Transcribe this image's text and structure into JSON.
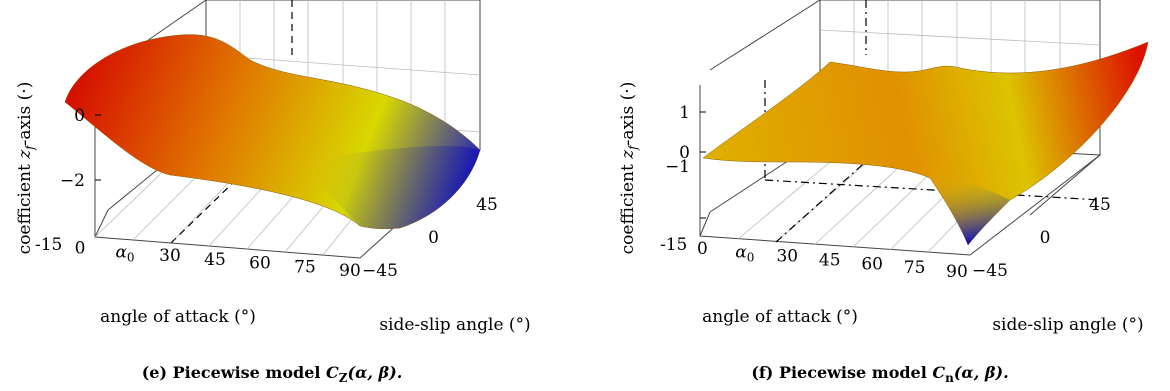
{
  "chart_data": [
    {
      "type": "surface",
      "caption": "(e) Piecewise model C_Z(α, β).",
      "caption_prefix": "(e) Piecewise model ",
      "caption_symbol": "C",
      "caption_sub": "Z",
      "caption_args": "(α, β).",
      "xlabel": "angle of attack (°)",
      "ylabel": "side-slip angle (°)",
      "zlabel": "coefficient z_f-axis (·)",
      "zlabel_pre": "coefficient ",
      "zlabel_z": "z",
      "zlabel_f": "f",
      "zlabel_post": "-axis (·)",
      "x_ticks": [
        "-15",
        "0",
        "α0",
        "30",
        "45",
        "60",
        "75",
        "90"
      ],
      "x_tick_values": [
        -15,
        0,
        15,
        30,
        45,
        60,
        75,
        90
      ],
      "y_ticks": [
        "−45",
        "0",
        "45"
      ],
      "y_tick_values": [
        -45,
        0,
        45
      ],
      "z_ticks": [
        "0",
        "−2"
      ],
      "z_tick_values": [
        0,
        -2
      ],
      "xlim": [
        -15,
        90
      ],
      "ylim": [
        -45,
        45
      ],
      "zlim": [
        -3.2,
        1.6
      ],
      "surface_samples": {
        "x": [
          -15,
          0,
          15,
          30,
          45,
          60,
          75,
          90
        ],
        "z_at_beta_minus45": [
          0.9,
          0.6,
          -0.2,
          -0.9,
          -1.5,
          -2.0,
          -2.5,
          -2.9
        ],
        "z_at_beta_0": [
          1.1,
          0.9,
          0.3,
          -0.6,
          -1.3,
          -1.9,
          -2.4,
          -2.6
        ],
        "z_at_beta_45": [
          1.3,
          1.2,
          0.8,
          -0.2,
          -0.9,
          -1.4,
          -1.8,
          -2.1
        ]
      },
      "colormap": [
        "#0000cc",
        "#dddd00",
        "#dd0000"
      ],
      "grid": true
    },
    {
      "type": "surface",
      "caption": "(f) Piecewise model C_n(α, β).",
      "caption_prefix": "(f) Piecewise model ",
      "caption_symbol": "C",
      "caption_sub": "n",
      "caption_args": "(α, β).",
      "xlabel": "angle of attack (°)",
      "ylabel": "side-slip angle (°)",
      "zlabel": "coefficient z_f-axis (·)",
      "zlabel_pre": "coefficient ",
      "zlabel_z": "z",
      "zlabel_f": "f",
      "zlabel_post": "-axis (·)",
      "x_ticks": [
        "-15",
        "0",
        "α0",
        "30",
        "45",
        "60",
        "75",
        "90"
      ],
      "x_tick_values": [
        -15,
        0,
        15,
        30,
        45,
        60,
        75,
        90
      ],
      "y_ticks": [
        "−45",
        "0",
        "45"
      ],
      "y_tick_values": [
        -45,
        0,
        45
      ],
      "z_ticks": [
        "1",
        "0",
        "−1"
      ],
      "z_tick_values": [
        1,
        0,
        -1
      ],
      "xlim": [
        -15,
        90
      ],
      "ylim": [
        -45,
        45
      ],
      "zlim": [
        -1.2,
        1.6
      ],
      "surface_samples": {
        "x": [
          -15,
          0,
          15,
          30,
          45,
          60,
          75,
          90
        ],
        "z_at_beta_minus45": [
          0.0,
          -0.05,
          -0.1,
          -0.2,
          -0.35,
          -0.55,
          -0.8,
          -1.1
        ],
        "z_at_beta_0": [
          0.0,
          0.0,
          0.0,
          0.0,
          0.0,
          0.0,
          0.0,
          0.0
        ],
        "z_at_beta_45": [
          0.0,
          0.05,
          0.1,
          0.2,
          0.35,
          0.55,
          0.8,
          1.1
        ]
      },
      "colormap": [
        "#0000cc",
        "#dddd00",
        "#dd0000"
      ],
      "grid": true
    }
  ]
}
